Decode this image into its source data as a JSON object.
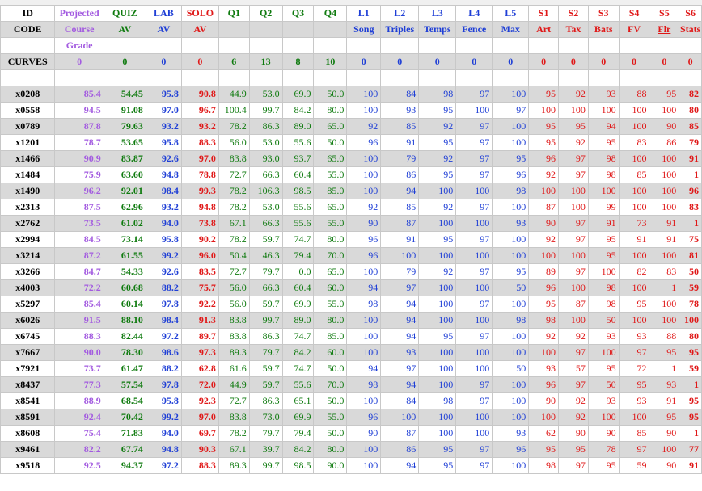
{
  "colors": {
    "black": "#000000",
    "purple": "#a35be0",
    "green": "#0e7a0e",
    "blue": "#1f3fd6",
    "red": "#e01818",
    "shade": "#d9d9d9"
  },
  "header": {
    "row1": [
      "ID",
      "Projected",
      "QUIZ",
      "LAB",
      "SOLO",
      "Q1",
      "Q2",
      "Q3",
      "Q4",
      "L1",
      "L2",
      "L3",
      "L4",
      "L5",
      "S1",
      "S2",
      "S3",
      "S4",
      "S5",
      "S6"
    ],
    "row2": [
      "CODE",
      "Course",
      "AV",
      "AV",
      "AV",
      "",
      "",
      "",
      "",
      "Song",
      "Triples",
      "Temps",
      "Fence",
      "Max",
      "Art",
      "Tax",
      "Bats",
      "FV",
      "Flr",
      "Stats"
    ],
    "row3": [
      "",
      "Grade",
      "",
      "",
      "",
      "",
      "",
      "",
      "",
      "",
      "",
      "",
      "",
      "",
      "",
      "",
      "",
      "",
      "",
      ""
    ],
    "curves": [
      "CURVES",
      "0",
      "0",
      "0",
      "0",
      "6",
      "13",
      "8",
      "10",
      "0",
      "0",
      "0",
      "0",
      "0",
      "0",
      "0",
      "0",
      "0",
      "0",
      "0"
    ]
  },
  "rows": [
    [
      "x0208",
      "85.4",
      "54.45",
      "95.8",
      "90.8",
      "44.9",
      "53.0",
      "69.9",
      "50.0",
      "100",
      "84",
      "98",
      "97",
      "100",
      "95",
      "92",
      "93",
      "88",
      "95",
      "82"
    ],
    [
      "x0558",
      "94.5",
      "91.08",
      "97.0",
      "96.7",
      "100.4",
      "99.7",
      "84.2",
      "80.0",
      "100",
      "93",
      "95",
      "100",
      "97",
      "100",
      "100",
      "100",
      "100",
      "100",
      "80"
    ],
    [
      "x0789",
      "87.8",
      "79.63",
      "93.2",
      "93.2",
      "78.2",
      "86.3",
      "89.0",
      "65.0",
      "92",
      "85",
      "92",
      "97",
      "100",
      "95",
      "95",
      "94",
      "100",
      "90",
      "85"
    ],
    [
      "x1201",
      "78.7",
      "53.65",
      "95.8",
      "88.3",
      "56.0",
      "53.0",
      "55.6",
      "50.0",
      "96",
      "91",
      "95",
      "97",
      "100",
      "95",
      "92",
      "95",
      "83",
      "86",
      "79"
    ],
    [
      "x1466",
      "90.9",
      "83.87",
      "92.6",
      "97.0",
      "83.8",
      "93.0",
      "93.7",
      "65.0",
      "100",
      "79",
      "92",
      "97",
      "95",
      "96",
      "97",
      "98",
      "100",
      "100",
      "91"
    ],
    [
      "x1484",
      "75.9",
      "63.60",
      "94.8",
      "78.8",
      "72.7",
      "66.3",
      "60.4",
      "55.0",
      "100",
      "86",
      "95",
      "97",
      "96",
      "92",
      "97",
      "98",
      "85",
      "100",
      "1"
    ],
    [
      "x1490",
      "96.2",
      "92.01",
      "98.4",
      "99.3",
      "78.2",
      "106.3",
      "98.5",
      "85.0",
      "100",
      "94",
      "100",
      "100",
      "98",
      "100",
      "100",
      "100",
      "100",
      "100",
      "96"
    ],
    [
      "x2313",
      "87.5",
      "62.96",
      "93.2",
      "94.8",
      "78.2",
      "53.0",
      "55.6",
      "65.0",
      "92",
      "85",
      "92",
      "97",
      "100",
      "87",
      "100",
      "99",
      "100",
      "100",
      "83"
    ],
    [
      "x2762",
      "73.5",
      "61.02",
      "94.0",
      "73.8",
      "67.1",
      "66.3",
      "55.6",
      "55.0",
      "90",
      "87",
      "100",
      "100",
      "93",
      "90",
      "97",
      "91",
      "73",
      "91",
      "1"
    ],
    [
      "x2994",
      "84.5",
      "73.14",
      "95.8",
      "90.2",
      "78.2",
      "59.7",
      "74.7",
      "80.0",
      "96",
      "91",
      "95",
      "97",
      "100",
      "92",
      "97",
      "95",
      "91",
      "91",
      "75"
    ],
    [
      "x3214",
      "87.2",
      "61.55",
      "99.2",
      "96.0",
      "50.4",
      "46.3",
      "79.4",
      "70.0",
      "96",
      "100",
      "100",
      "100",
      "100",
      "100",
      "100",
      "95",
      "100",
      "100",
      "81"
    ],
    [
      "x3266",
      "84.7",
      "54.33",
      "92.6",
      "83.5",
      "72.7",
      "79.7",
      "0.0",
      "65.0",
      "100",
      "79",
      "92",
      "97",
      "95",
      "89",
      "97",
      "100",
      "82",
      "83",
      "50"
    ],
    [
      "x4003",
      "72.2",
      "60.68",
      "88.2",
      "75.7",
      "56.0",
      "66.3",
      "60.4",
      "60.0",
      "94",
      "97",
      "100",
      "100",
      "50",
      "96",
      "100",
      "98",
      "100",
      "1",
      "59"
    ],
    [
      "x5297",
      "85.4",
      "60.14",
      "97.8",
      "92.2",
      "56.0",
      "59.7",
      "69.9",
      "55.0",
      "98",
      "94",
      "100",
      "97",
      "100",
      "95",
      "87",
      "98",
      "95",
      "100",
      "78"
    ],
    [
      "x6026",
      "91.5",
      "88.10",
      "98.4",
      "91.3",
      "83.8",
      "99.7",
      "89.0",
      "80.0",
      "100",
      "94",
      "100",
      "100",
      "98",
      "98",
      "100",
      "50",
      "100",
      "100",
      "100"
    ],
    [
      "x6745",
      "88.3",
      "82.44",
      "97.2",
      "89.7",
      "83.8",
      "86.3",
      "74.7",
      "85.0",
      "100",
      "94",
      "95",
      "97",
      "100",
      "92",
      "92",
      "93",
      "93",
      "88",
      "80"
    ],
    [
      "x7667",
      "90.0",
      "78.30",
      "98.6",
      "97.3",
      "89.3",
      "79.7",
      "84.2",
      "60.0",
      "100",
      "93",
      "100",
      "100",
      "100",
      "100",
      "97",
      "100",
      "97",
      "95",
      "95"
    ],
    [
      "x7921",
      "73.7",
      "61.47",
      "88.2",
      "62.8",
      "61.6",
      "59.7",
      "74.7",
      "50.0",
      "94",
      "97",
      "100",
      "100",
      "50",
      "93",
      "57",
      "95",
      "72",
      "1",
      "59"
    ],
    [
      "x8437",
      "77.3",
      "57.54",
      "97.8",
      "72.0",
      "44.9",
      "59.7",
      "55.6",
      "70.0",
      "98",
      "94",
      "100",
      "97",
      "100",
      "96",
      "97",
      "50",
      "95",
      "93",
      "1"
    ],
    [
      "x8541",
      "88.9",
      "68.54",
      "95.8",
      "92.3",
      "72.7",
      "86.3",
      "65.1",
      "50.0",
      "100",
      "84",
      "98",
      "97",
      "100",
      "90",
      "92",
      "93",
      "93",
      "91",
      "95"
    ],
    [
      "x8591",
      "92.4",
      "70.42",
      "99.2",
      "97.0",
      "83.8",
      "73.0",
      "69.9",
      "55.0",
      "96",
      "100",
      "100",
      "100",
      "100",
      "100",
      "92",
      "100",
      "100",
      "95",
      "95"
    ],
    [
      "x8608",
      "75.4",
      "71.83",
      "94.0",
      "69.7",
      "78.2",
      "79.7",
      "79.4",
      "50.0",
      "90",
      "87",
      "100",
      "100",
      "93",
      "62",
      "90",
      "90",
      "85",
      "90",
      "1"
    ],
    [
      "x9461",
      "82.2",
      "67.74",
      "94.8",
      "90.3",
      "67.1",
      "39.7",
      "84.2",
      "80.0",
      "100",
      "86",
      "95",
      "97",
      "96",
      "95",
      "95",
      "78",
      "97",
      "100",
      "77"
    ],
    [
      "x9518",
      "92.5",
      "94.37",
      "97.2",
      "88.3",
      "89.3",
      "99.7",
      "98.5",
      "90.0",
      "100",
      "94",
      "95",
      "97",
      "100",
      "98",
      "97",
      "95",
      "59",
      "90",
      "91"
    ]
  ]
}
